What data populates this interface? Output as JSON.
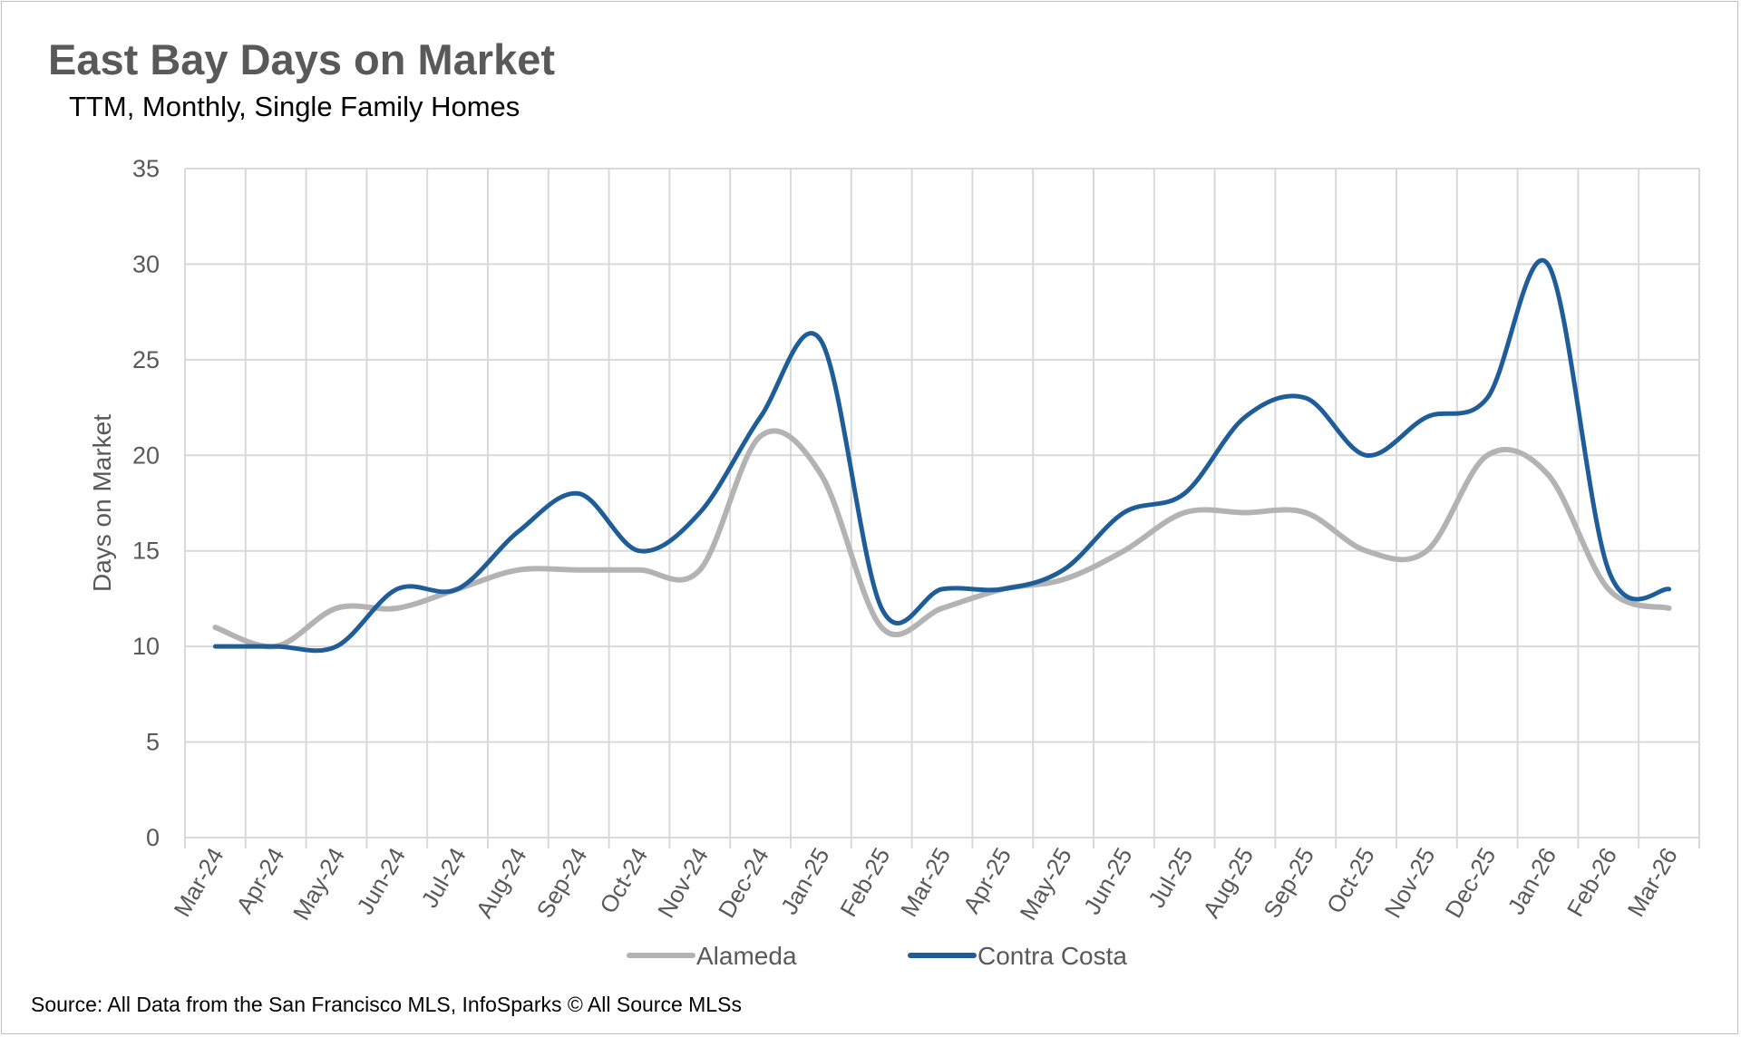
{
  "header": {
    "title": "East Bay Days on Market",
    "subtitle": "TTM, Monthly, Single Family Homes"
  },
  "footer": {
    "source": "Source: All Data from the San Francisco MLS, InfoSparks © All Source MLSs"
  },
  "chart_data": {
    "type": "line",
    "title": "East Bay Days on Market",
    "subtitle": "TTM, Monthly, Single Family Homes",
    "xlabel": "",
    "ylabel": "Days on Market",
    "ylim": [
      0,
      35
    ],
    "yticks": [
      0,
      5,
      10,
      15,
      20,
      25,
      30,
      35
    ],
    "grid": true,
    "legend": "bottom",
    "categories": [
      "Mar-24",
      "Apr-24",
      "May-24",
      "Jun-24",
      "Jul-24",
      "Aug-24",
      "Sep-24",
      "Oct-24",
      "Nov-24",
      "Dec-24",
      "Jan-25",
      "Feb-25",
      "Mar-25",
      "Apr-25",
      "May-25",
      "Jun-25",
      "Jul-25",
      "Aug-25",
      "Sep-25",
      "Oct-25",
      "Nov-25",
      "Dec-25",
      "Jan-26",
      "Feb-26",
      "Mar-26"
    ],
    "series": [
      {
        "name": "Alameda",
        "color": "#b3b3b3",
        "values": [
          11,
          10,
          12,
          12,
          13,
          14,
          14,
          14,
          14,
          21,
          19,
          11,
          12,
          13,
          13.5,
          15,
          17,
          17,
          17,
          15,
          15,
          20,
          19,
          13,
          12
        ]
      },
      {
        "name": "Contra Costa",
        "color": "#1f5d99",
        "values": [
          10,
          10,
          10,
          13,
          13,
          16,
          18,
          15,
          17,
          22,
          26,
          12,
          13,
          13,
          14,
          17,
          18,
          22,
          23,
          20,
          22,
          23,
          30,
          14,
          13
        ]
      }
    ]
  }
}
